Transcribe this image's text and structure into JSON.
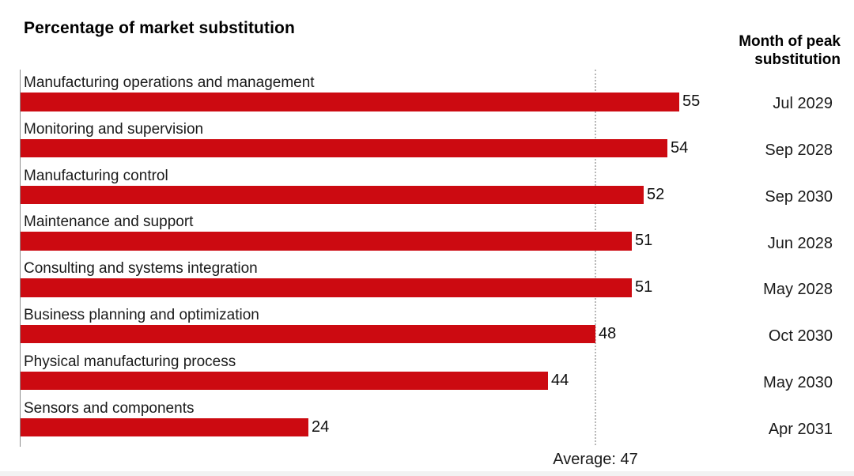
{
  "title": "Percentage of market substitution",
  "right_header": {
    "line1": "Month of peak",
    "line2": "substitution"
  },
  "average_label": "Average: 47",
  "colors": {
    "bar": "#CC0A11",
    "axis_line": "#8c8c8c",
    "average_line": "#b8b8b8",
    "text": "#1a1a1a"
  },
  "chart_data": {
    "type": "bar",
    "orientation": "horizontal",
    "title": "Percentage of market substitution",
    "month_column_header": "Month of peak substitution",
    "categories": [
      "Manufacturing operations and management",
      "Monitoring and supervision",
      "Manufacturing control",
      "Maintenance and support",
      "Consulting and systems integration",
      "Business planning and optimization",
      "Physical manufacturing process",
      "Sensors and components"
    ],
    "values": [
      55,
      54,
      52,
      51,
      51,
      48,
      44,
      24
    ],
    "months": [
      "Jul 2029",
      "Sep 2028",
      "Sep 2030",
      "Jun 2028",
      "May 2028",
      "Oct 2030",
      "May 2030",
      "Apr 2031"
    ],
    "average": 47,
    "average_label": "Average: 47",
    "xlim": [
      0,
      69
    ],
    "bar_color": "#CC0A11",
    "legend": "none",
    "grid": "average-dotted-line-only",
    "value_labels": "end-of-bar"
  }
}
